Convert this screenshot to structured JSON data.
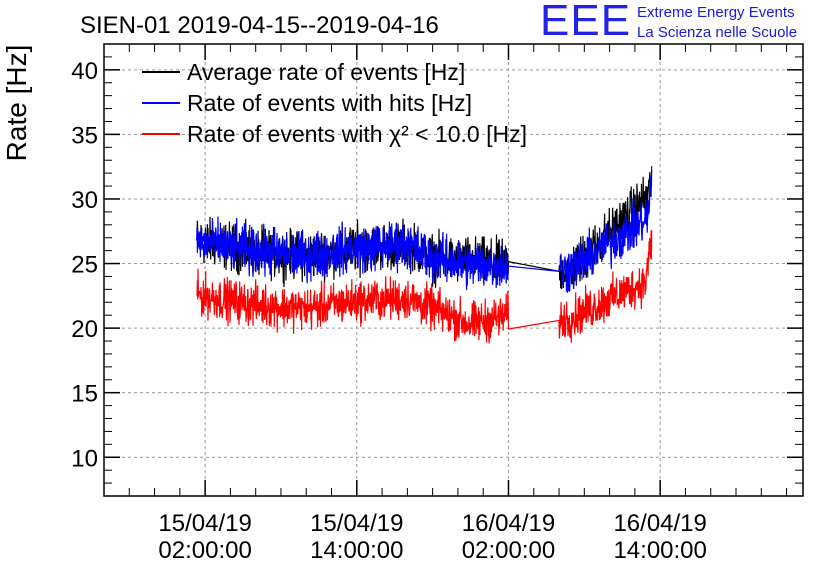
{
  "chart_data": {
    "type": "line",
    "title": "SIEN-01 2019-04-15--2019-04-16",
    "ylabel": "Rate [Hz]",
    "xlabel": "",
    "ylim": [
      7,
      42
    ],
    "yticks": [
      10,
      15,
      20,
      25,
      30,
      35,
      40
    ],
    "xticks": [
      {
        "date": "15/04/19",
        "time": "02:00:00"
      },
      {
        "date": "15/04/19",
        "time": "14:00:00"
      },
      {
        "date": "16/04/19",
        "time": "02:00:00"
      },
      {
        "date": "16/04/19",
        "time": "14:00:00"
      }
    ],
    "grid": true,
    "legend_position": "top-left",
    "series": [
      {
        "name": "Average rate of events [Hz]",
        "color": "#000000",
        "x": [
          "2019-04-15 01:20",
          "2019-04-15 06:00",
          "2019-04-15 10:00",
          "2019-04-15 14:00",
          "2019-04-15 18:00",
          "2019-04-15 20:00",
          "2019-04-15 23:00",
          "2019-04-16 02:00",
          "2019-04-16 06:00",
          "2019-04-16 07:00",
          "2019-04-16 13:00",
          "2019-04-16 13:20"
        ],
        "y": [
          26.8,
          25.9,
          25.6,
          26.2,
          26.5,
          25.4,
          25.2,
          24.9,
          24.4,
          24.6,
          30.2,
          31.5
        ]
      },
      {
        "name": "Rate of events with hits [Hz]",
        "color": "#0000ff",
        "x": [
          "2019-04-15 01:20",
          "2019-04-15 06:00",
          "2019-04-15 10:00",
          "2019-04-15 14:00",
          "2019-04-15 18:00",
          "2019-04-15 20:00",
          "2019-04-15 23:00",
          "2019-04-16 02:00",
          "2019-04-16 06:00",
          "2019-04-16 07:00",
          "2019-04-16 13:00",
          "2019-04-16 13:20"
        ],
        "y": [
          26.8,
          25.9,
          25.6,
          26.2,
          26.5,
          25.4,
          24.9,
          24.9,
          24.4,
          24.6,
          28.5,
          31.5
        ]
      },
      {
        "name": "Rate of events with χ² < 10.0 [Hz]",
        "color": "#ff0000",
        "x": [
          "2019-04-15 01:20",
          "2019-04-15 06:00",
          "2019-04-15 10:00",
          "2019-04-15 14:00",
          "2019-04-15 18:00",
          "2019-04-15 20:00",
          "2019-04-15 23:00",
          "2019-04-16 02:00",
          "2019-04-16 06:00",
          "2019-04-16 07:00",
          "2019-04-16 12:50",
          "2019-04-16 13:20"
        ],
        "y": [
          22.6,
          21.8,
          21.5,
          22.1,
          22.3,
          21.5,
          20.3,
          21.0,
          20.6,
          20.8,
          23.6,
          26.8
        ]
      }
    ]
  },
  "logo": {
    "letters": "EEE",
    "line1": "Extreme Energy Events",
    "line2": "La Scienza nelle Scuole"
  }
}
